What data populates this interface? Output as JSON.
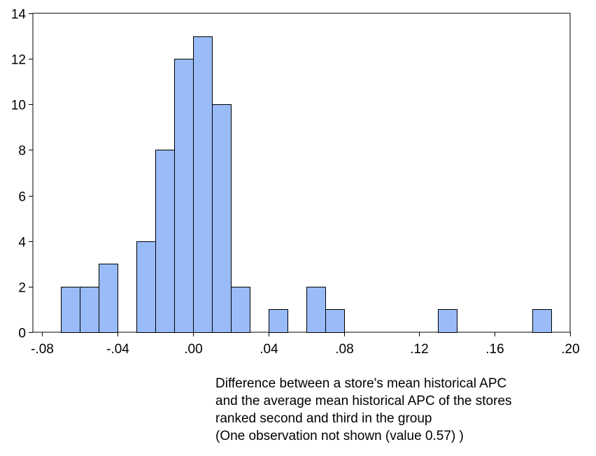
{
  "chart_data": {
    "type": "bar",
    "subtype": "histogram",
    "bin_width": 0.01,
    "bins": [
      {
        "start": -0.07,
        "end": -0.06,
        "count": 2
      },
      {
        "start": -0.06,
        "end": -0.05,
        "count": 2
      },
      {
        "start": -0.05,
        "end": -0.04,
        "count": 3
      },
      {
        "start": -0.03,
        "end": -0.02,
        "count": 4
      },
      {
        "start": -0.02,
        "end": -0.01,
        "count": 8
      },
      {
        "start": -0.01,
        "end": 0.0,
        "count": 12
      },
      {
        "start": 0.0,
        "end": 0.01,
        "count": 13
      },
      {
        "start": 0.01,
        "end": 0.02,
        "count": 10
      },
      {
        "start": 0.02,
        "end": 0.03,
        "count": 2
      },
      {
        "start": 0.04,
        "end": 0.05,
        "count": 1
      },
      {
        "start": 0.06,
        "end": 0.07,
        "count": 2
      },
      {
        "start": 0.07,
        "end": 0.08,
        "count": 1
      },
      {
        "start": 0.13,
        "end": 0.14,
        "count": 1
      },
      {
        "start": 0.18,
        "end": 0.19,
        "count": 1
      }
    ],
    "xlim": [
      -0.085,
      0.2
    ],
    "ylim": [
      0,
      14
    ],
    "x_ticks": [
      -0.08,
      -0.04,
      0.0,
      0.04,
      0.08,
      0.12,
      0.16,
      0.2
    ],
    "x_tick_labels": [
      "-.08",
      "-.04",
      ".00",
      ".04",
      ".08",
      ".12",
      ".16",
      ".20"
    ],
    "y_ticks": [
      0,
      2,
      4,
      6,
      8,
      10,
      12,
      14
    ],
    "y_tick_labels": [
      "0",
      "2",
      "4",
      "6",
      "8",
      "10",
      "12",
      "14"
    ],
    "grid": false,
    "bar_color": "#99bbf7",
    "bar_edge_color": "#000000",
    "xlabel_lines": [
      "Difference between a store's mean historical APC",
      "and the average mean historical APC of the stores",
      "ranked second and third in the group",
      "(One observation not shown (value 0.57) )"
    ]
  }
}
